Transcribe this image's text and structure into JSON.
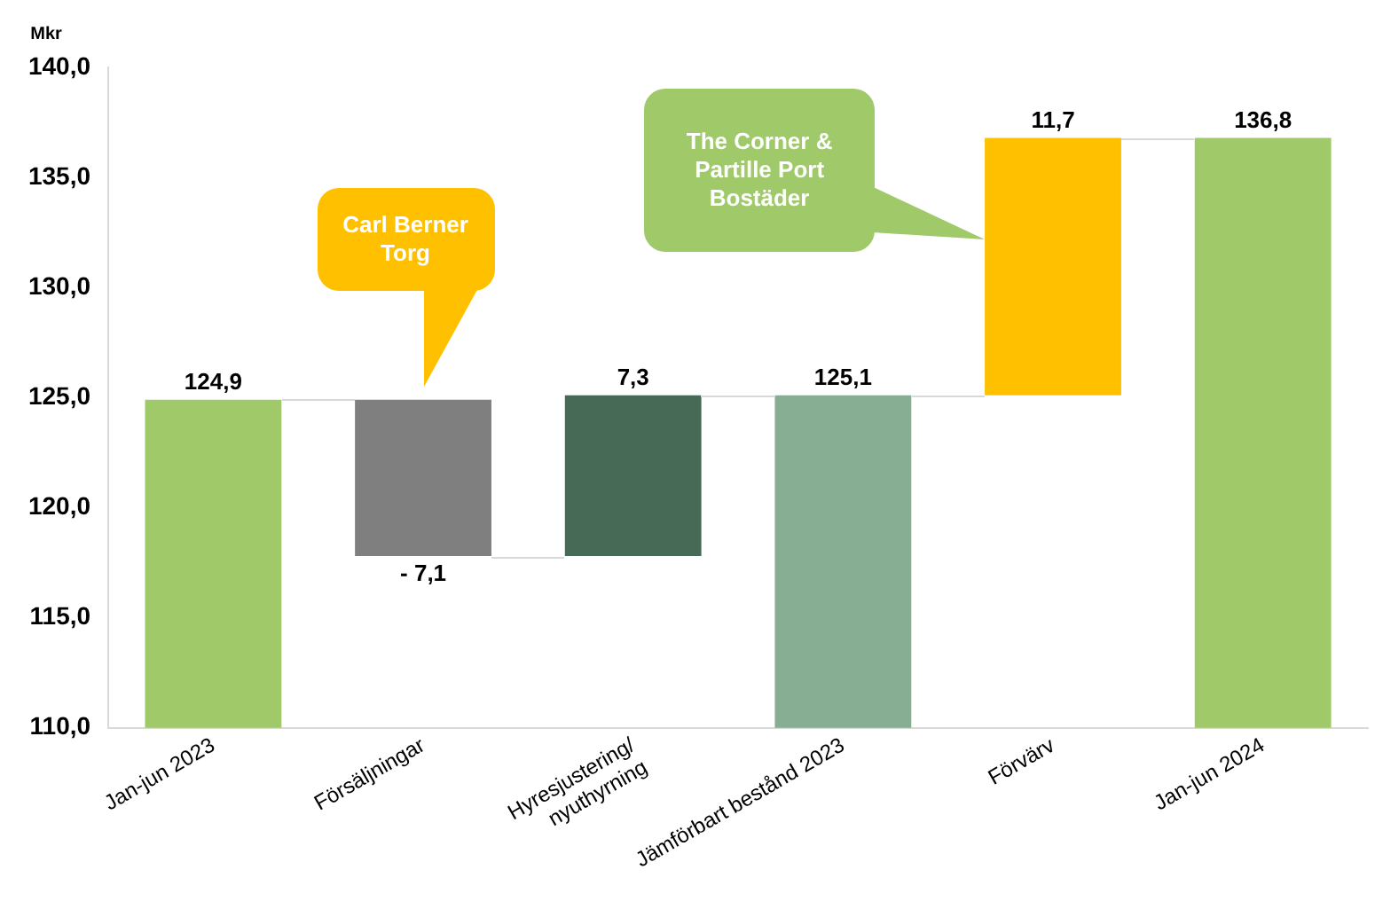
{
  "chart_data": {
    "type": "bar",
    "ylabel": "Mkr",
    "categories": [
      "Jan-jun 2023",
      "Försäljningar",
      "Hyresjustering/\nnyuthyrning",
      "Jämförbart bestånd 2023",
      "Förvärv",
      "Jan-jun 2024"
    ],
    "values": [
      124.9,
      -7.1,
      7.3,
      125.1,
      11.7,
      136.8
    ],
    "base": [
      null,
      124.9,
      117.8,
      null,
      125.1,
      null
    ],
    "value_labels": [
      "124,9",
      "- 7,1",
      "7,3",
      "125,1",
      "11,7",
      "136,8"
    ],
    "colors": [
      "#a0c96a",
      "#7f7f7f",
      "#466a55",
      "#87ae93",
      "#ffc000",
      "#a0c96a"
    ],
    "ylim": [
      110,
      140
    ],
    "yticks": [
      {
        "value": 110,
        "label": "110,0"
      },
      {
        "value": 115,
        "label": "115,0"
      },
      {
        "value": 120,
        "label": "120,0"
      },
      {
        "value": 125,
        "label": "125,0"
      },
      {
        "value": 130,
        "label": "130,0"
      },
      {
        "value": 135,
        "label": "135,0"
      },
      {
        "value": 140,
        "label": "140,0"
      }
    ],
    "grid": false,
    "legend": false,
    "annotations": [
      "Carl Berner Torg",
      "The Corner & Partille Port Bostäder"
    ]
  }
}
